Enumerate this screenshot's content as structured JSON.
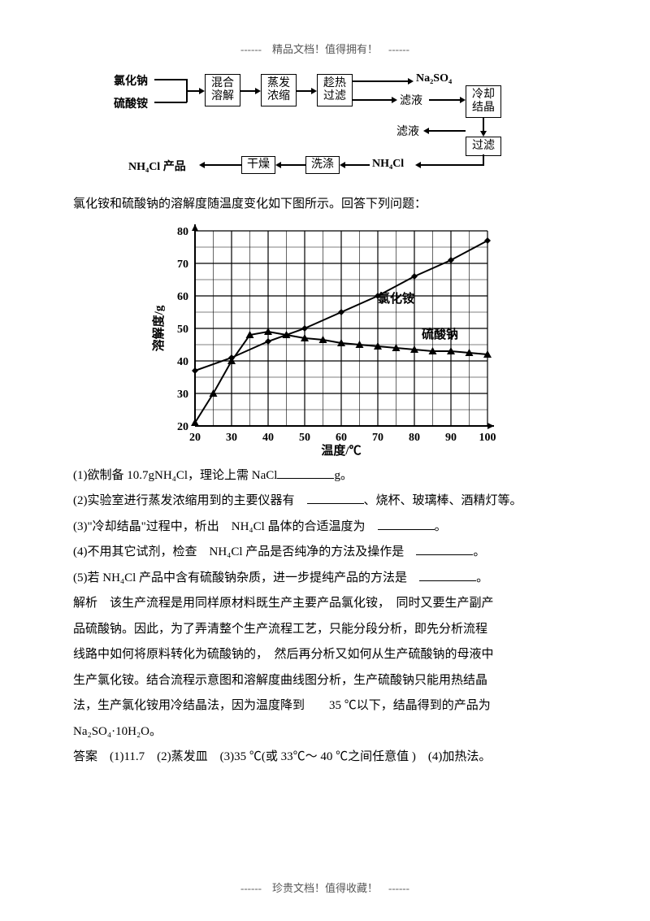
{
  "header": "------　精品文档！值得拥有！　------",
  "footer": "------　珍贵文档！值得收藏！　------",
  "flow": {
    "nacl": "氯化钠",
    "as": "硫酸铵",
    "mix": "混合\n溶解",
    "evap": "蒸发\n浓缩",
    "hotfilter": "趁热\n过滤",
    "na2so4": "Na₂SO₄",
    "filtrate1": "滤液",
    "coolcryst": "冷却\n结晶",
    "filter2": "过滤",
    "filtrate2": "滤液",
    "nh4cl_r": "NH₄Cl",
    "wash": "洗涤",
    "dry": "干燥",
    "product": "NH₄Cl 产品"
  },
  "chart_intro": "氯化铵和硫酸钠的溶解度随温度变化如下图所示。回答下列问题：",
  "chart": {
    "y_label": "溶解度/g",
    "x_label": "温度/℃",
    "x_ticks": [
      20,
      30,
      40,
      50,
      60,
      70,
      80,
      90,
      100
    ],
    "y_ticks": [
      20,
      30,
      40,
      50,
      60,
      70,
      80
    ],
    "series": {
      "nh4cl": {
        "label": "氯化铵",
        "label_pos_x": 70,
        "label_pos_y": 58,
        "points": [
          [
            20,
            37
          ],
          [
            30,
            41
          ],
          [
            40,
            46
          ],
          [
            50,
            50
          ],
          [
            60,
            55
          ],
          [
            70,
            60
          ],
          [
            80,
            66
          ],
          [
            90,
            71
          ],
          [
            100,
            77
          ]
        ],
        "marker": "diamond",
        "color": "#000000"
      },
      "na2so4": {
        "label": "硫酸钠",
        "label_pos_x": 82,
        "label_pos_y": 47,
        "points": [
          [
            20,
            21
          ],
          [
            25,
            30
          ],
          [
            30,
            40
          ],
          [
            35,
            48
          ],
          [
            40,
            49
          ],
          [
            45,
            48
          ],
          [
            50,
            47
          ],
          [
            55,
            46.5
          ],
          [
            60,
            45.5
          ],
          [
            65,
            45
          ],
          [
            70,
            44.5
          ],
          [
            75,
            44
          ],
          [
            80,
            43.5
          ],
          [
            85,
            43
          ],
          [
            90,
            43
          ],
          [
            95,
            42.5
          ],
          [
            100,
            42
          ]
        ],
        "marker": "triangle",
        "color": "#000000"
      }
    },
    "grid_color": "#000000",
    "bg": "#ffffff"
  },
  "questions": {
    "q1a": "(1)欲制备 10.7gNH₄Cl，理论上需  NaCl",
    "q1b": "g。",
    "q2a": "(2)实验室进行蒸发浓缩用到的主要仪器有　",
    "q2b": "、烧杯、玻璃棒、酒精灯等。",
    "q3a": "(3)\"冷却结晶\"过程中，析出　NH₄Cl 晶体的合适温度为　",
    "q3b": "。",
    "q4a": "(4)不用其它试剂，检查　NH₄Cl 产品是否纯净的方法及操作是　",
    "q4b": "。",
    "q5a": "(5)若 NH₄Cl 产品中含有硫酸钠杂质，进一步提纯产品的方法是　",
    "q5b": "。"
  },
  "explanation": [
    "解析　该生产流程是用同样原材料既生产主要产品氯化铵，　同时又要生产副产",
    "品硫酸钠。因此，为了弄清整个生产流程工艺，只能分段分析，即先分析流程",
    "线路中如何将原料转化为硫酸钠的，　然后再分析又如何从生产硫酸钠的母液中",
    "生产氯化铵。结合流程示意图和溶解度曲线图分析，生产硫酸钠只能用热结晶",
    "法，生产氯化铵用冷结晶法，因为温度降到　　35 ℃以下，结晶得到的产品为",
    "Na₂SO₄·10H₂O。"
  ],
  "answer": "答案　(1)11.7　(2)蒸发皿　(3)35 ℃(或 33℃～ 40 ℃之间任意值 )　(4)加热法。"
}
